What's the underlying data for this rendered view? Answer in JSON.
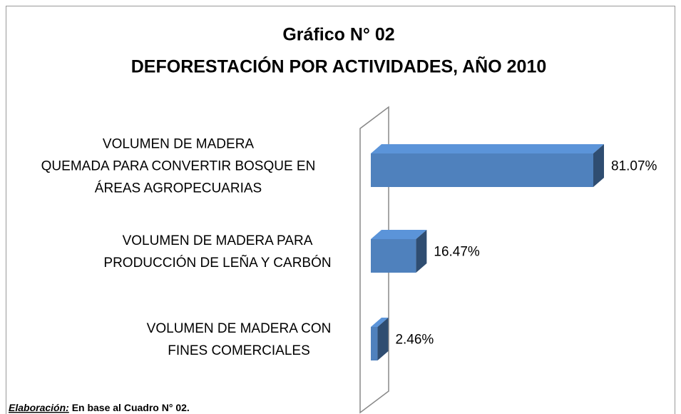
{
  "chart_data": {
    "type": "bar3d_horizontal",
    "title": [
      "Gráfico N° 02",
      "DEFORESTACIÓN POR ACTIVIDADES, AÑO 2010"
    ],
    "categories": [
      [
        "VOLUMEN DE MADERA",
        "QUEMADA PARA CONVERTIR BOSQUE EN",
        "ÁREAS AGROPECUARIAS"
      ],
      [
        "VOLUMEN DE MADERA PARA",
        "PRODUCCIÓN DE LEÑA Y CARBÓN"
      ],
      [
        "VOLUMEN DE MADERA CON",
        "FINES COMERCIALES"
      ]
    ],
    "values": [
      81.07,
      16.47,
      2.46
    ],
    "value_labels": [
      "81.07%",
      "16.47%",
      "2.46%"
    ],
    "color": "#4f81bd"
  },
  "footer": {
    "label": "Elaboración:",
    "text": "En base al Cuadro N° 02."
  }
}
